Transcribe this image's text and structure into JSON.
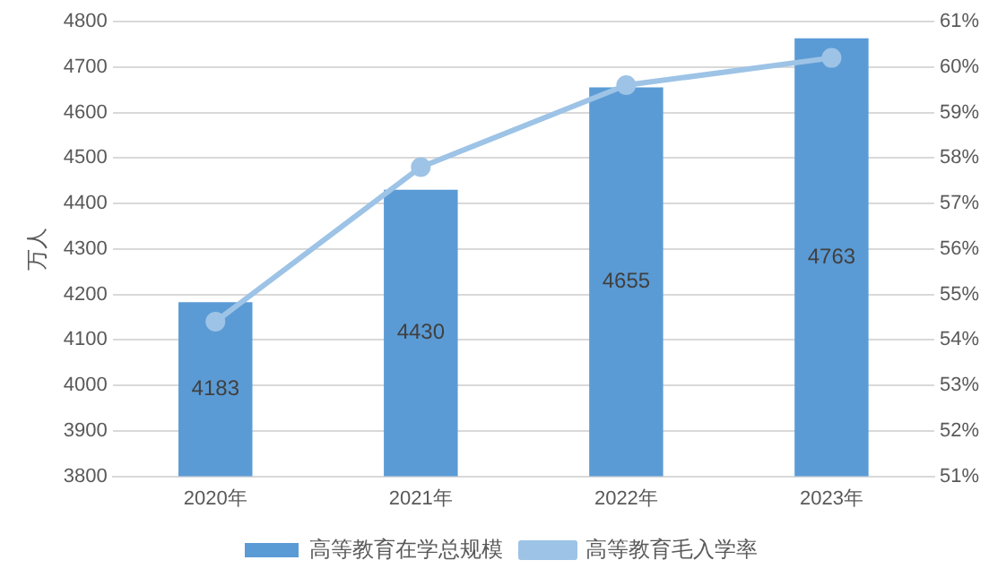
{
  "chart_data": {
    "type": "bar",
    "ylabel": "万人",
    "categories": [
      "2020年",
      "2021年",
      "2022年",
      "2023年"
    ],
    "series": [
      {
        "name": "高等教育在学总规模",
        "color": "#5b9bd5",
        "values": [
          4183,
          4430,
          4655,
          4763
        ],
        "value_labels": [
          "4183",
          "4430",
          "4655",
          "4763"
        ]
      },
      {
        "name": "高等教育毛入学率",
        "type": "line",
        "axis": "y2",
        "color": "#9dc3e6",
        "values": [
          54.4,
          57.8,
          59.6,
          60.2
        ]
      }
    ],
    "ylim": [
      3800,
      4800
    ],
    "yticks": [
      3800,
      3900,
      4000,
      4100,
      4200,
      4300,
      4400,
      4500,
      4600,
      4700,
      4800
    ],
    "y2lim": [
      51,
      61
    ],
    "y2ticks": [
      {
        "value": 51,
        "label": "51%"
      },
      {
        "value": 52,
        "label": "52%"
      },
      {
        "value": 53,
        "label": "53%"
      },
      {
        "value": 54,
        "label": "54%"
      },
      {
        "value": 55,
        "label": "55%"
      },
      {
        "value": 56,
        "label": "56%"
      },
      {
        "value": 57,
        "label": "57%"
      },
      {
        "value": 58,
        "label": "58%"
      },
      {
        "value": 59,
        "label": "59%"
      },
      {
        "value": 60,
        "label": "60%"
      },
      {
        "value": 61,
        "label": "61%"
      }
    ],
    "grid": "y",
    "legend": "bottom",
    "marker": "circle"
  }
}
